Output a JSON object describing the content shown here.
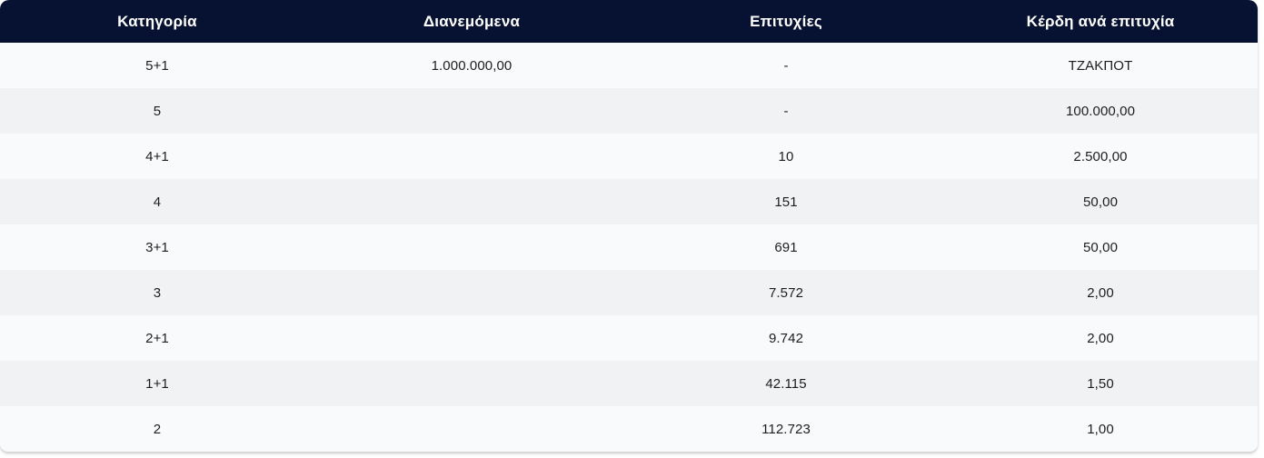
{
  "page": {
    "background_color": "#ffffff"
  },
  "prize_table": {
    "colors": {
      "header_bg": "#071233",
      "header_text": "#ffffff",
      "row_odd_bg": "#f9fafb",
      "row_even_bg": "#f1f2f4",
      "body_text": "#1e1e1e"
    },
    "columns": [
      {
        "label": "Κατηγορία"
      },
      {
        "label": "Διανεμόμενα"
      },
      {
        "label": "Επιτυχίες"
      },
      {
        "label": "Κέρδη ανά επιτυχία"
      }
    ],
    "rows": [
      [
        "5+1",
        "1.000.000,00",
        "-",
        "ΤΖΑΚΠΟΤ"
      ],
      [
        "5",
        "",
        "-",
        "100.000,00"
      ],
      [
        "4+1",
        "",
        "10",
        "2.500,00"
      ],
      [
        "4",
        "",
        "151",
        "50,00"
      ],
      [
        "3+1",
        "",
        "691",
        "50,00"
      ],
      [
        "3",
        "",
        "7.572",
        "2,00"
      ],
      [
        "2+1",
        "",
        "9.742",
        "2,00"
      ],
      [
        "1+1",
        "",
        "42.115",
        "1,50"
      ],
      [
        "2",
        "",
        "112.723",
        "1,00"
      ]
    ]
  }
}
